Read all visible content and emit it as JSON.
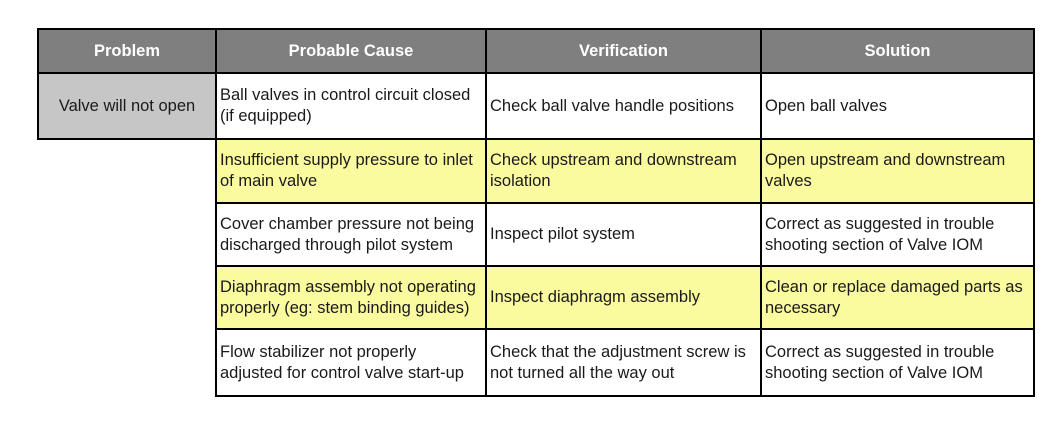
{
  "table": {
    "title": "valve-troubleshooting-table",
    "headers": [
      "Problem",
      "Probable Cause",
      "Verification",
      "Solution"
    ],
    "problem": "Valve will not open",
    "rows": [
      {
        "cause": "Ball valves in control circuit closed (if equipped)",
        "verification": "Check ball valve handle positions",
        "solution": "Open ball valves",
        "highlighted": false
      },
      {
        "cause": "Insufficient supply pressure to inlet of main valve",
        "verification": "Check upstream and downstream isolation",
        "solution": "Open upstream and downstream valves",
        "highlighted": true
      },
      {
        "cause": "Cover chamber pressure not being discharged through pilot system",
        "verification": "Inspect pilot system",
        "solution": "Correct as suggested in trouble shooting section of Valve IOM",
        "highlighted": false
      },
      {
        "cause": "Diaphragm assembly not operating properly (eg: stem binding guides)",
        "verification": "Inspect diaphragm assembly",
        "solution": "Clean or replace damaged parts as necessary",
        "highlighted": true
      },
      {
        "cause": "Flow stabilizer not properly adjusted for control valve start-up",
        "verification": "Check that the adjustment screw is not turned all the way out",
        "solution": "Correct as suggested in trouble shooting section of Valve IOM",
        "highlighted": false
      }
    ]
  },
  "colors": {
    "header_bg": "#7f7f7f",
    "header_text": "#ffffff",
    "problem_bg": "#c6c6c6",
    "highlight_bg": "#fafa9e",
    "row_bg": "#ffffff",
    "border_color": "#000000",
    "text_color": "#1a1a1a",
    "page_bg": "#ffffff"
  }
}
